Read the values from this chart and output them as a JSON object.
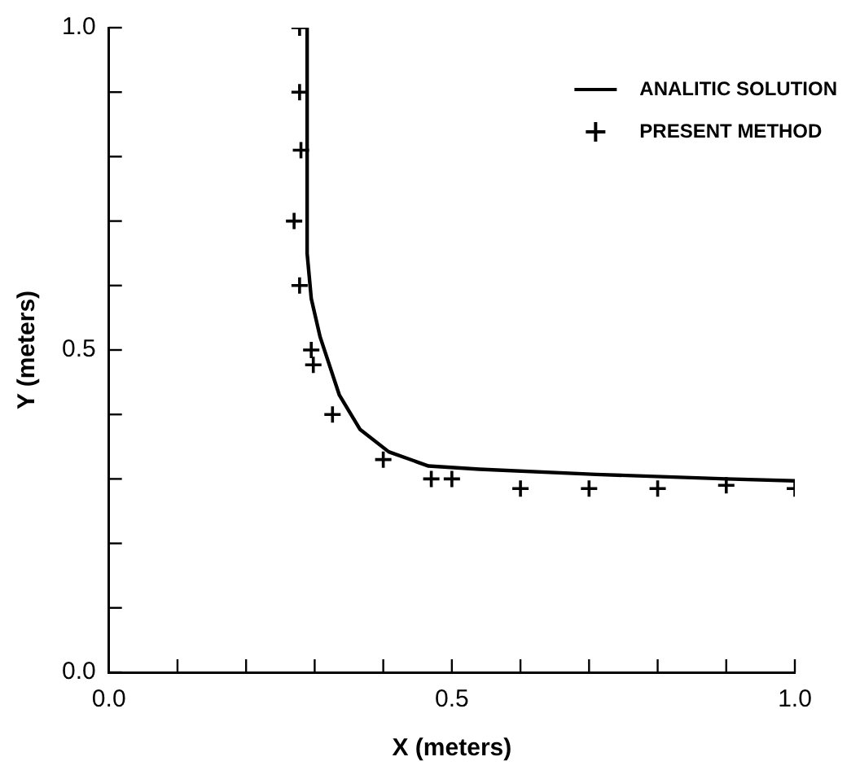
{
  "chart_data": {
    "type": "line",
    "xlabel": "X (meters)",
    "ylabel": "Y (meters)",
    "xlim": [
      0,
      1
    ],
    "ylim": [
      0,
      1
    ],
    "xticks": [
      {
        "value": 0,
        "label": "0.0"
      },
      {
        "value": 0.1,
        "label": null
      },
      {
        "value": 0.2,
        "label": null
      },
      {
        "value": 0.3,
        "label": null
      },
      {
        "value": 0.4,
        "label": null
      },
      {
        "value": 0.5,
        "label": "0.5"
      },
      {
        "value": 0.6,
        "label": null
      },
      {
        "value": 0.7,
        "label": null
      },
      {
        "value": 0.8,
        "label": null
      },
      {
        "value": 0.9,
        "label": null
      },
      {
        "value": 1,
        "label": "1.0"
      }
    ],
    "yticks": [
      {
        "value": 0,
        "label": "0.0"
      },
      {
        "value": 0.1,
        "label": null
      },
      {
        "value": 0.2,
        "label": null
      },
      {
        "value": 0.3,
        "label": null
      },
      {
        "value": 0.4,
        "label": null
      },
      {
        "value": 0.5,
        "label": "0.5"
      },
      {
        "value": 0.6,
        "label": null
      },
      {
        "value": 0.7,
        "label": null
      },
      {
        "value": 0.8,
        "label": null
      },
      {
        "value": 0.9,
        "label": null
      },
      {
        "value": 1,
        "label": "1.0"
      }
    ],
    "legend": "top right",
    "series": [
      {
        "name": "ANALITIC SOLUTION",
        "color": "#000000",
        "marker": "none",
        "line_style": "solid",
        "x": [
          0.289,
          0.288,
          0.29,
          0.295,
          0.308,
          0.336,
          0.366,
          0.408,
          0.466,
          0.54,
          0.71,
          0.9,
          1.0
        ],
        "values": [
          1.0,
          0.8,
          0.65,
          0.58,
          0.52,
          0.43,
          0.377,
          0.342,
          0.32,
          0.315,
          0.307,
          0.3,
          0.297
        ]
      },
      {
        "name": "PRESENT METHOD",
        "type": "scatter",
        "color": "#000000",
        "marker": "cross",
        "x": [
          0.278,
          0.278,
          0.28,
          0.27,
          0.278,
          0.295,
          0.298,
          0.326,
          0.4,
          0.47,
          0.5,
          0.6,
          0.7,
          0.8,
          0.9,
          1.0
        ],
        "values": [
          1.0,
          0.9,
          0.81,
          0.7,
          0.6,
          0.5,
          0.477,
          0.4,
          0.33,
          0.3,
          0.3,
          0.285,
          0.285,
          0.285,
          0.29,
          0.285
        ]
      }
    ]
  }
}
